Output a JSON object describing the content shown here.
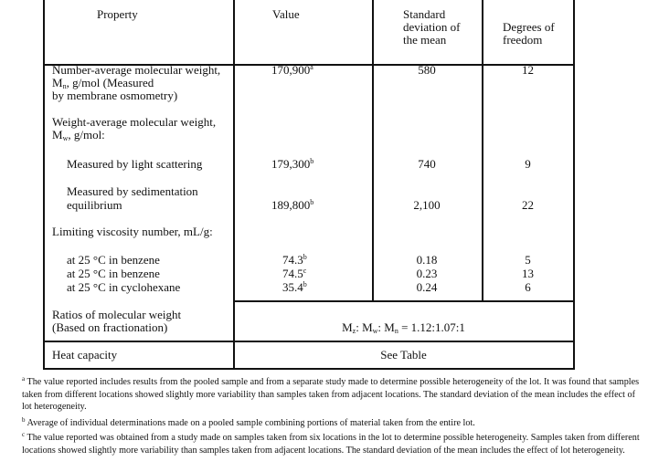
{
  "table": {
    "headers": {
      "property": "Property",
      "value": "Value",
      "std_dev": [
        "Standard",
        "deviation of",
        "the mean"
      ],
      "dof": [
        "Degrees of",
        "freedom"
      ]
    },
    "rows": {
      "mn": {
        "label": [
          "Number-average molecular weight,",
          "M",
          "n",
          ", g/mol (Measured",
          "by membrane osmometry)"
        ],
        "value": "170,900",
        "note": "a",
        "std": "580",
        "dof": "12"
      },
      "mw": {
        "label": [
          "Weight-average molecular weight,",
          "M",
          "w",
          ", g/mol:"
        ]
      },
      "light": {
        "label": "Measured by light scattering",
        "value": "179,300",
        "note": "b",
        "std": "740",
        "dof": "9"
      },
      "sed": {
        "label": [
          "Measured by sedimentation",
          "equilibrium"
        ],
        "value": "189,800",
        "note": "b",
        "std": "2,100",
        "dof": "22"
      },
      "visc": {
        "label": "Limiting viscosity number, mL/g:"
      },
      "visc_rows": [
        {
          "label": "at 25 °C in benzene",
          "value": "74.3",
          "note": "b",
          "std": "0.18",
          "dof": "5"
        },
        {
          "label": "at 25 °C in benzene",
          "value": "74.5",
          "note": "c",
          "std": "0.23",
          "dof": "13"
        },
        {
          "label": "at 25 °C in cyclohexane",
          "value": "35.4",
          "note": "b",
          "std": "0.24",
          "dof": "6"
        }
      ],
      "ratios": {
        "label": [
          "Ratios of molecular weight",
          "(Based on fractionation)"
        ],
        "value": [
          "M",
          "z",
          ": M",
          "w",
          ": M",
          "n",
          " = 1.12:1.07:1"
        ]
      },
      "heat": {
        "label": "Heat capacity",
        "value": "See Table"
      }
    }
  },
  "footnotes": [
    {
      "mark": "a",
      "text": "The value reported includes results from the pooled sample and from a separate study made to determine possible heterogeneity of the lot. It was found that samples taken from different locations showed slightly more variability than samples taken from adjacent locations. The standard deviation of the mean includes the effect of lot heterogeneity."
    },
    {
      "mark": "b",
      "text": "Average of individual determinations made on a pooled sample combining portions of material taken from the entire lot."
    },
    {
      "mark": "c",
      "text": "The value reported was obtained from a study made on samples taken from six locations in the lot to determine possible heterogeneity. Samples taken from different locations showed slightly more variability than samples taken from adjacent locations.  The standard deviation of the mean includes the effect of lot heterogeneity."
    }
  ]
}
